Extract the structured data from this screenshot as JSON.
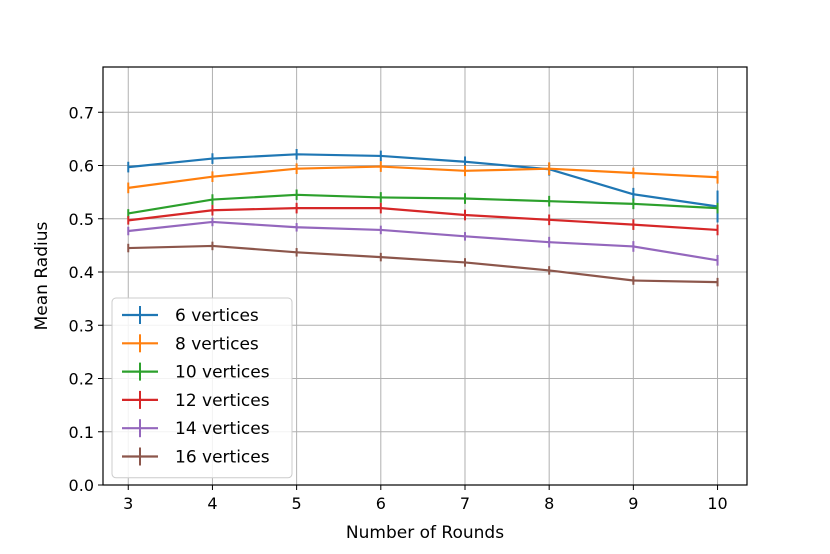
{
  "chart_data": {
    "type": "line",
    "title": "",
    "xlabel": "Number of Rounds",
    "ylabel": "Mean Radius",
    "x": [
      3,
      4,
      5,
      6,
      7,
      8,
      9,
      10
    ],
    "xlim": [
      2.7,
      10.35
    ],
    "ylim": [
      0.0,
      0.785
    ],
    "xticks": [
      3,
      4,
      5,
      6,
      7,
      8,
      9,
      10
    ],
    "yticks": [
      "0.0",
      "0.1",
      "0.2",
      "0.3",
      "0.4",
      "0.5",
      "0.6",
      "0.7"
    ],
    "grid": true,
    "legend_position": "lower-left",
    "series": [
      {
        "name": "6 vertices",
        "color": "#1f77b4",
        "values": [
          0.597,
          0.613,
          0.621,
          0.618,
          0.607,
          0.593,
          0.546,
          0.523
        ],
        "errors": [
          0.01,
          0.01,
          0.01,
          0.01,
          0.01,
          0.012,
          0.012,
          0.03
        ]
      },
      {
        "name": "8 vertices",
        "color": "#ff7f0e",
        "values": [
          0.558,
          0.579,
          0.594,
          0.598,
          0.59,
          0.594,
          0.586,
          0.578
        ],
        "errors": [
          0.01,
          0.01,
          0.01,
          0.01,
          0.01,
          0.012,
          0.01,
          0.012
        ]
      },
      {
        "name": "10 vertices",
        "color": "#2ca02c",
        "values": [
          0.51,
          0.536,
          0.545,
          0.54,
          0.538,
          0.533,
          0.528,
          0.52
        ],
        "errors": [
          0.008,
          0.01,
          0.01,
          0.01,
          0.01,
          0.01,
          0.01,
          0.01
        ]
      },
      {
        "name": "12 vertices",
        "color": "#d62728",
        "values": [
          0.497,
          0.516,
          0.52,
          0.52,
          0.507,
          0.498,
          0.489,
          0.479
        ],
        "errors": [
          0.008,
          0.01,
          0.01,
          0.01,
          0.01,
          0.01,
          0.01,
          0.01
        ]
      },
      {
        "name": "14 vertices",
        "color": "#9467bd",
        "values": [
          0.477,
          0.494,
          0.484,
          0.479,
          0.467,
          0.456,
          0.448,
          0.422
        ],
        "errors": [
          0.008,
          0.008,
          0.008,
          0.008,
          0.008,
          0.01,
          0.01,
          0.01
        ]
      },
      {
        "name": "16 vertices",
        "color": "#8c564b",
        "values": [
          0.445,
          0.449,
          0.437,
          0.428,
          0.418,
          0.403,
          0.384,
          0.381
        ],
        "errors": [
          0.008,
          0.008,
          0.008,
          0.008,
          0.008,
          0.008,
          0.008,
          0.008
        ]
      }
    ]
  }
}
